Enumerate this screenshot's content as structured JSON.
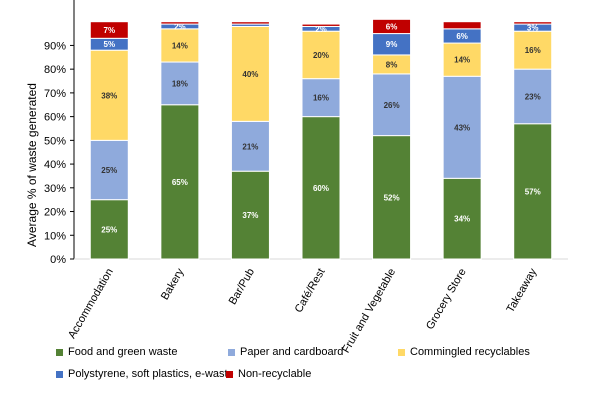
{
  "chart_data": {
    "type": "bar",
    "stacked": true,
    "title": "",
    "xlabel": "",
    "ylabel": "Average % of waste generated",
    "ylim": [
      0,
      100
    ],
    "yticks": [
      "0%",
      "10%",
      "20%",
      "30%",
      "40%",
      "50%",
      "60%",
      "70%",
      "80%",
      "90%"
    ],
    "grid": false,
    "legend_position": "bottom",
    "categories": [
      "Accommodation",
      "Bakery",
      "Bar/Pub",
      "Café/Rest",
      "Fruit and Vegetable",
      "Grocery Store",
      "Takeaway"
    ],
    "series": [
      {
        "name": "Food and green waste",
        "color": "#548235",
        "values": [
          25,
          65,
          37,
          60,
          52,
          34,
          57
        ],
        "labels": [
          "25%",
          "65%",
          "37%",
          "60%",
          "52%",
          "34%",
          "57%"
        ]
      },
      {
        "name": "Paper and cardboard",
        "color": "#8faadc",
        "values": [
          25,
          18,
          21,
          16,
          26,
          43,
          23
        ],
        "labels": [
          "25%",
          "18%",
          "21%",
          "16%",
          "26%",
          "43%",
          "23%"
        ]
      },
      {
        "name": "Commingled recyclables",
        "color": "#ffd966",
        "values": [
          38,
          14,
          40,
          20,
          8,
          14,
          16
        ],
        "labels": [
          "38%",
          "14%",
          "40%",
          "20%",
          "8%",
          "14%",
          "16%"
        ]
      },
      {
        "name": "Polystyrene, soft plastics, e-waste",
        "color": "#4472c4",
        "values": [
          5,
          2,
          1,
          2,
          9,
          6,
          3
        ],
        "labels": [
          "5%",
          "2%",
          "",
          "2%",
          "9%",
          "6%",
          "3%"
        ]
      },
      {
        "name": "Non-recyclable",
        "color": "#c00000",
        "values": [
          7,
          1,
          1,
          1,
          6,
          3,
          1
        ],
        "labels": [
          "7%",
          "",
          "",
          "",
          "6%",
          "",
          ""
        ]
      }
    ]
  }
}
